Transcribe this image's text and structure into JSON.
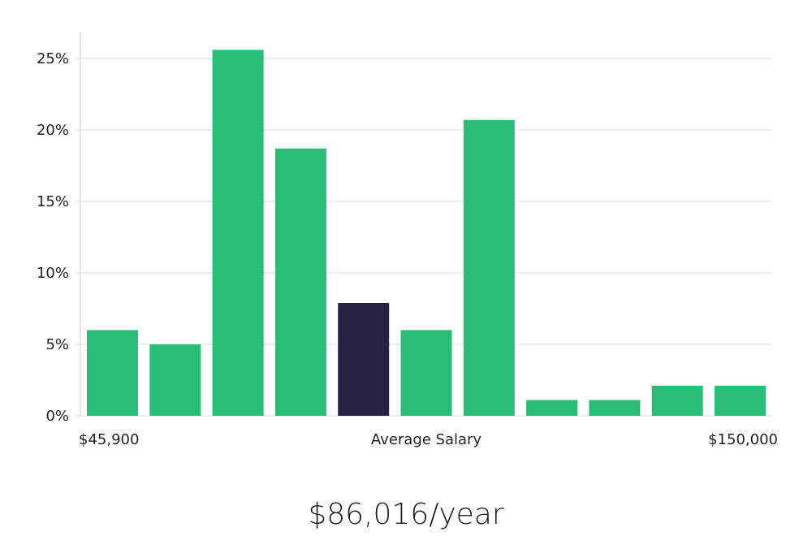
{
  "chart_data": {
    "type": "bar",
    "title": "",
    "xlabel": "Average Salary",
    "ylabel": "",
    "x_min_label": "$45,900",
    "x_max_label": "$150,000",
    "ylim": [
      0,
      27
    ],
    "yticks": [
      0,
      5,
      10,
      15,
      20,
      25
    ],
    "ytick_labels": [
      "0%",
      "5%",
      "10%",
      "15%",
      "20%",
      "25%"
    ],
    "grid": true,
    "values": [
      6,
      5,
      25.6,
      18.7,
      7.9,
      6,
      20.7,
      1.1,
      1.1,
      2.1,
      2.1
    ],
    "highlight_index": 4,
    "colors": {
      "bar": "#2abd77",
      "highlight": "#262444",
      "grid": "#dddddd",
      "axis": "#cccccc"
    }
  },
  "salary": {
    "display": "$86,016/year"
  }
}
